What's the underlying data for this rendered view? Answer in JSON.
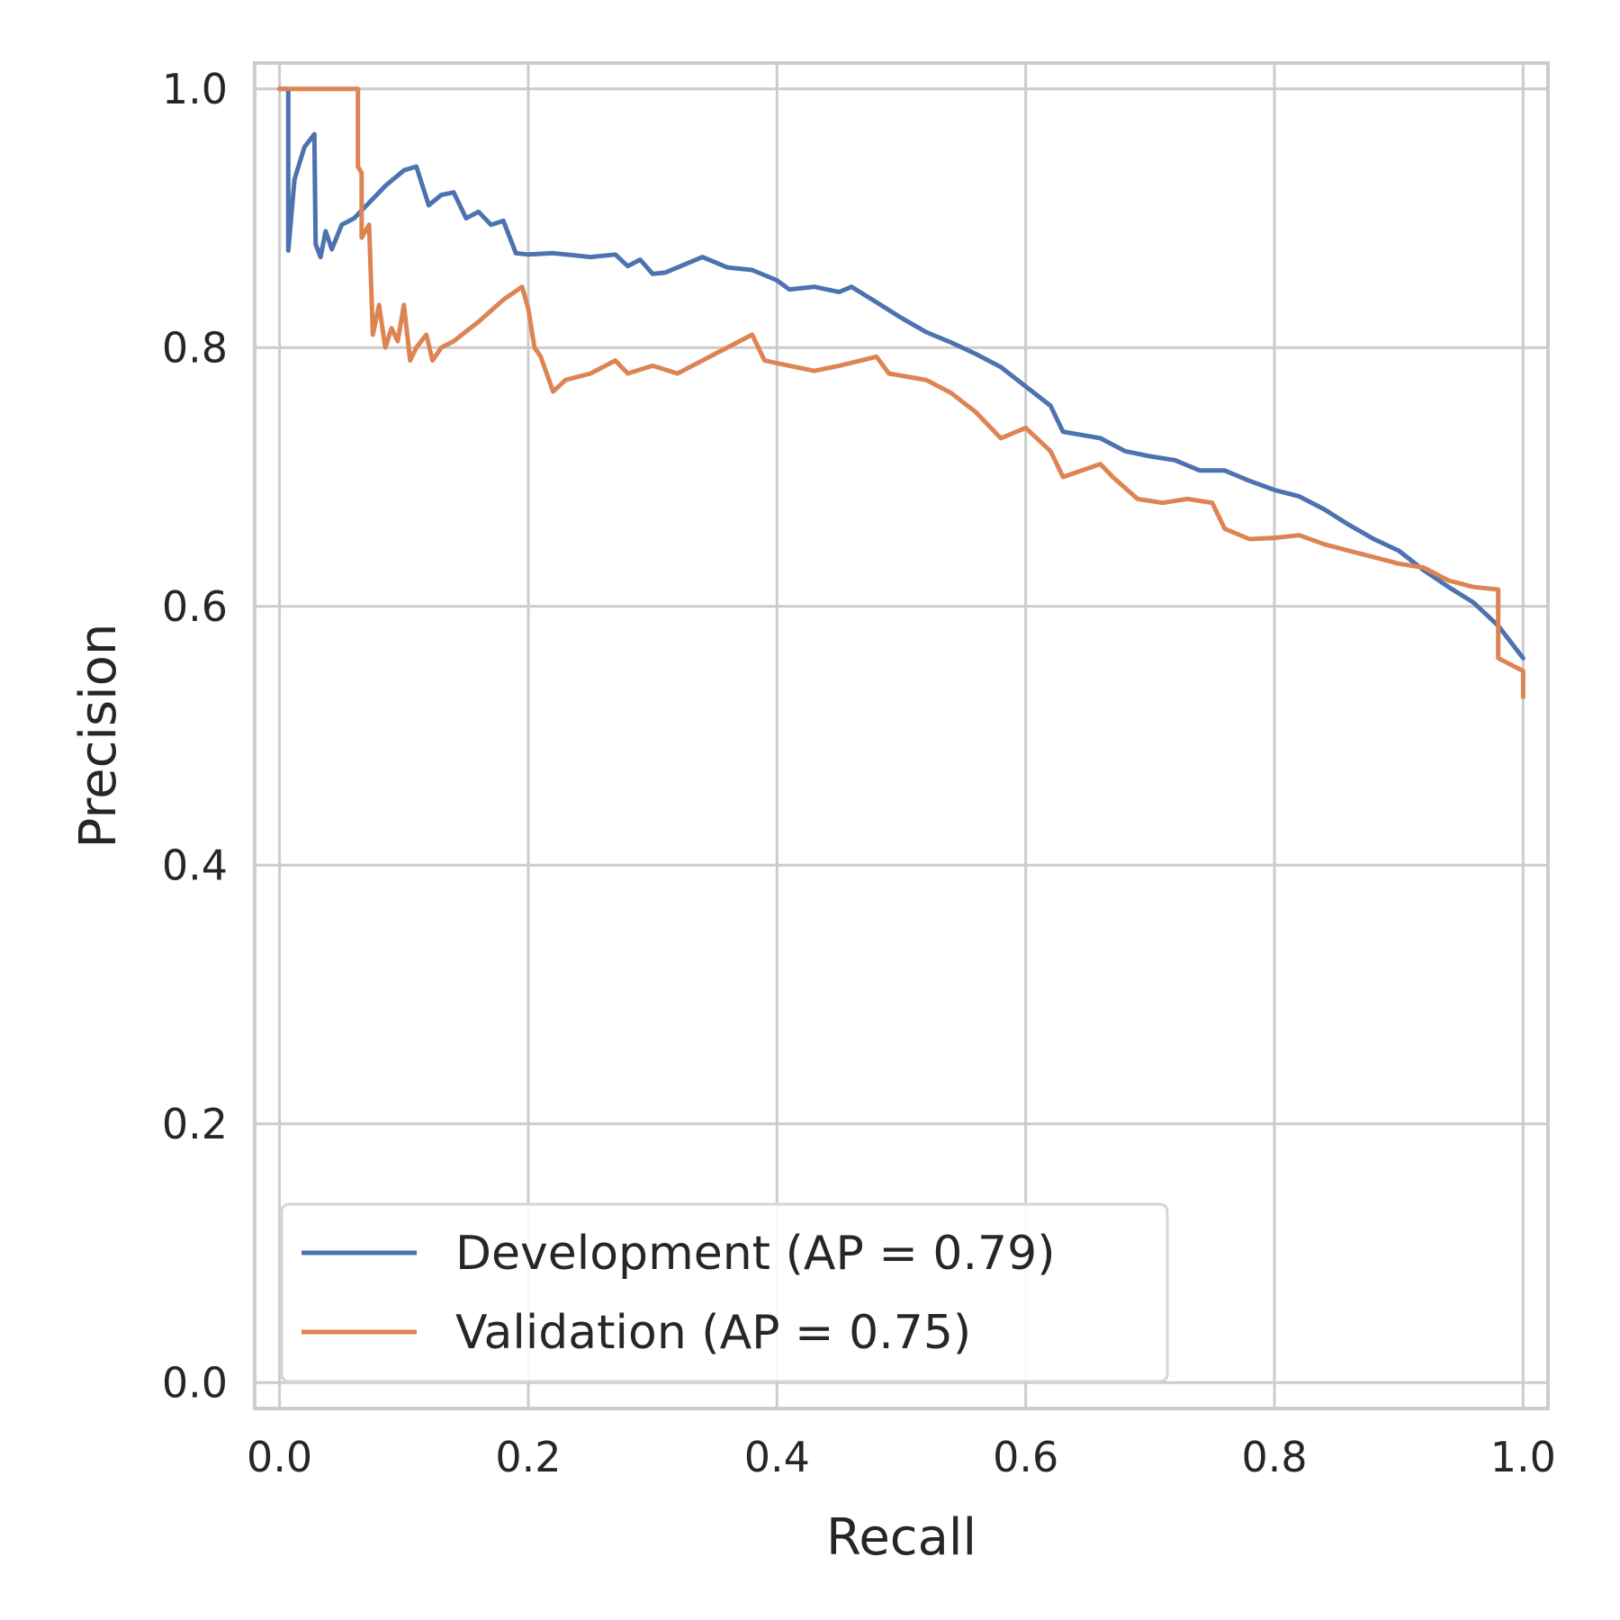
{
  "chart_data": {
    "type": "line",
    "title": "",
    "xlabel": "Recall",
    "ylabel": "Precision",
    "xlim": [
      -0.02,
      1.02
    ],
    "ylim": [
      -0.02,
      1.02
    ],
    "x_ticks": [
      "0.0",
      "0.2",
      "0.4",
      "0.6",
      "0.8",
      "1.0"
    ],
    "y_ticks": [
      "0.0",
      "0.2",
      "0.4",
      "0.6",
      "0.8",
      "1.0"
    ],
    "grid": true,
    "legend_position": "lower-left",
    "series": [
      {
        "name": "Development (AP = 0.79)",
        "color": "#4c72b0",
        "points": [
          [
            0.0,
            1.0
          ],
          [
            0.007,
            1.0
          ],
          [
            0.007,
            0.875
          ],
          [
            0.012,
            0.93
          ],
          [
            0.02,
            0.955
          ],
          [
            0.028,
            0.965
          ],
          [
            0.029,
            0.88
          ],
          [
            0.033,
            0.87
          ],
          [
            0.037,
            0.89
          ],
          [
            0.042,
            0.876
          ],
          [
            0.05,
            0.895
          ],
          [
            0.06,
            0.9
          ],
          [
            0.07,
            0.91
          ],
          [
            0.085,
            0.925
          ],
          [
            0.1,
            0.937
          ],
          [
            0.11,
            0.94
          ],
          [
            0.115,
            0.925
          ],
          [
            0.12,
            0.91
          ],
          [
            0.13,
            0.918
          ],
          [
            0.14,
            0.92
          ],
          [
            0.15,
            0.9
          ],
          [
            0.16,
            0.905
          ],
          [
            0.17,
            0.895
          ],
          [
            0.18,
            0.898
          ],
          [
            0.19,
            0.873
          ],
          [
            0.2,
            0.872
          ],
          [
            0.22,
            0.873
          ],
          [
            0.25,
            0.87
          ],
          [
            0.27,
            0.872
          ],
          [
            0.28,
            0.863
          ],
          [
            0.29,
            0.868
          ],
          [
            0.3,
            0.857
          ],
          [
            0.31,
            0.858
          ],
          [
            0.34,
            0.87
          ],
          [
            0.36,
            0.862
          ],
          [
            0.38,
            0.86
          ],
          [
            0.4,
            0.852
          ],
          [
            0.41,
            0.845
          ],
          [
            0.43,
            0.847
          ],
          [
            0.45,
            0.843
          ],
          [
            0.46,
            0.847
          ],
          [
            0.48,
            0.835
          ],
          [
            0.5,
            0.823
          ],
          [
            0.52,
            0.812
          ],
          [
            0.54,
            0.804
          ],
          [
            0.56,
            0.795
          ],
          [
            0.58,
            0.785
          ],
          [
            0.6,
            0.77
          ],
          [
            0.62,
            0.755
          ],
          [
            0.63,
            0.735
          ],
          [
            0.66,
            0.73
          ],
          [
            0.68,
            0.72
          ],
          [
            0.7,
            0.716
          ],
          [
            0.72,
            0.713
          ],
          [
            0.74,
            0.705
          ],
          [
            0.76,
            0.705
          ],
          [
            0.78,
            0.697
          ],
          [
            0.8,
            0.69
          ],
          [
            0.82,
            0.685
          ],
          [
            0.84,
            0.675
          ],
          [
            0.86,
            0.663
          ],
          [
            0.88,
            0.652
          ],
          [
            0.9,
            0.643
          ],
          [
            0.92,
            0.628
          ],
          [
            0.94,
            0.615
          ],
          [
            0.96,
            0.603
          ],
          [
            0.98,
            0.585
          ],
          [
            1.0,
            0.56
          ]
        ]
      },
      {
        "name": "Validation (AP = 0.75)",
        "color": "#dd8452",
        "points": [
          [
            0.0,
            1.0
          ],
          [
            0.063,
            1.0
          ],
          [
            0.063,
            0.94
          ],
          [
            0.066,
            0.935
          ],
          [
            0.066,
            0.885
          ],
          [
            0.072,
            0.895
          ],
          [
            0.075,
            0.81
          ],
          [
            0.08,
            0.833
          ],
          [
            0.085,
            0.8
          ],
          [
            0.09,
            0.815
          ],
          [
            0.095,
            0.805
          ],
          [
            0.1,
            0.833
          ],
          [
            0.105,
            0.79
          ],
          [
            0.11,
            0.8
          ],
          [
            0.118,
            0.81
          ],
          [
            0.123,
            0.79
          ],
          [
            0.13,
            0.8
          ],
          [
            0.14,
            0.805
          ],
          [
            0.16,
            0.82
          ],
          [
            0.18,
            0.837
          ],
          [
            0.195,
            0.847
          ],
          [
            0.2,
            0.83
          ],
          [
            0.205,
            0.8
          ],
          [
            0.21,
            0.793
          ],
          [
            0.22,
            0.766
          ],
          [
            0.23,
            0.775
          ],
          [
            0.25,
            0.78
          ],
          [
            0.27,
            0.79
          ],
          [
            0.28,
            0.78
          ],
          [
            0.3,
            0.786
          ],
          [
            0.32,
            0.78
          ],
          [
            0.35,
            0.795
          ],
          [
            0.38,
            0.81
          ],
          [
            0.39,
            0.79
          ],
          [
            0.41,
            0.786
          ],
          [
            0.43,
            0.782
          ],
          [
            0.45,
            0.786
          ],
          [
            0.48,
            0.793
          ],
          [
            0.49,
            0.78
          ],
          [
            0.52,
            0.775
          ],
          [
            0.54,
            0.765
          ],
          [
            0.56,
            0.75
          ],
          [
            0.58,
            0.73
          ],
          [
            0.6,
            0.738
          ],
          [
            0.62,
            0.72
          ],
          [
            0.63,
            0.7
          ],
          [
            0.66,
            0.71
          ],
          [
            0.67,
            0.7
          ],
          [
            0.69,
            0.683
          ],
          [
            0.71,
            0.68
          ],
          [
            0.73,
            0.683
          ],
          [
            0.75,
            0.68
          ],
          [
            0.76,
            0.66
          ],
          [
            0.78,
            0.652
          ],
          [
            0.8,
            0.653
          ],
          [
            0.82,
            0.655
          ],
          [
            0.84,
            0.648
          ],
          [
            0.86,
            0.643
          ],
          [
            0.88,
            0.638
          ],
          [
            0.9,
            0.633
          ],
          [
            0.92,
            0.63
          ],
          [
            0.94,
            0.62
          ],
          [
            0.96,
            0.615
          ],
          [
            0.98,
            0.613
          ],
          [
            0.98,
            0.56
          ],
          [
            1.0,
            0.55
          ],
          [
            1.0,
            0.53
          ]
        ]
      }
    ]
  }
}
